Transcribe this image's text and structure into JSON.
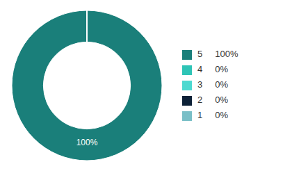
{
  "chart_data": {
    "type": "pie",
    "categories": [
      "5",
      "4",
      "3",
      "2",
      "1"
    ],
    "values": [
      100,
      0,
      0,
      0,
      0
    ],
    "value_labels": [
      "100%",
      "0%",
      "0%",
      "0%",
      "0%"
    ],
    "colors": [
      "#1a7f7a",
      "#2ec4b6",
      "#4dd9d0",
      "#0d2137",
      "#7abfc7"
    ],
    "annotations": [
      {
        "text": "100%",
        "color": "#ffffff"
      }
    ],
    "legend": "right"
  }
}
